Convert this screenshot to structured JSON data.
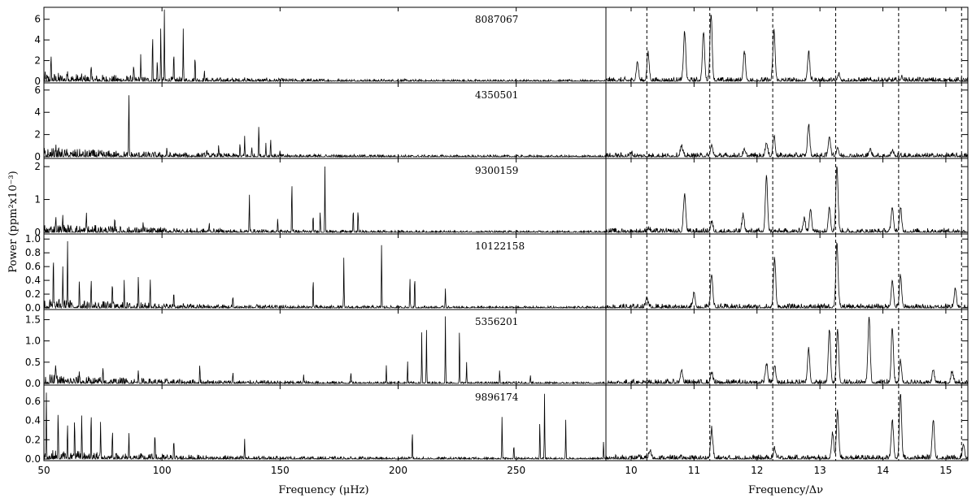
{
  "chart_data": {
    "type": "line",
    "ylabel": "Power (ppm²x10⁻³)",
    "left_axis": {
      "xlabel": "Frequency (μHz)",
      "xlim": [
        50,
        288
      ],
      "xticks": [
        50,
        100,
        150,
        200,
        250
      ]
    },
    "right_axis": {
      "xlabel": "Frequency/Δν",
      "xlim": [
        9.6,
        15.35
      ],
      "xticks": [
        10,
        11,
        12,
        13,
        14,
        15
      ],
      "dashed_lines": [
        10.25,
        11.25,
        12.25,
        13.25,
        14.25,
        15.25
      ]
    },
    "panels": [
      {
        "star": "8087067",
        "ylim": [
          0,
          7
        ],
        "yticks": [
          0,
          2,
          4,
          6
        ],
        "peaks": [
          [
            53,
            2.1
          ],
          [
            60,
            1.0
          ],
          [
            70,
            1.2
          ],
          [
            88,
            1.3
          ],
          [
            91,
            2.4
          ],
          [
            96,
            4.6
          ],
          [
            98,
            2.0
          ],
          [
            99.5,
            4.8
          ],
          [
            101,
            6.5
          ],
          [
            105,
            2.6
          ],
          [
            109,
            4.9
          ],
          [
            114,
            2.6
          ],
          [
            118,
            0.8
          ],
          [
            135,
            0.3
          ]
        ],
        "echelle_peaks": [
          [
            10.1,
            1.8
          ],
          [
            10.27,
            2.6
          ],
          [
            10.85,
            4.7
          ],
          [
            11.15,
            4.7
          ],
          [
            11.27,
            6.5
          ],
          [
            11.8,
            2.7
          ],
          [
            12.27,
            4.8
          ],
          [
            12.82,
            2.7
          ],
          [
            13.3,
            0.6
          ],
          [
            14.3,
            0.3
          ]
        ]
      },
      {
        "star": "4350501",
        "ylim": [
          0,
          6.5
        ],
        "yticks": [
          0,
          2,
          4,
          6
        ],
        "peaks": [
          [
            55,
            0.6
          ],
          [
            70,
            0.5
          ],
          [
            86,
            5.8
          ],
          [
            102,
            0.5
          ],
          [
            119,
            0.6
          ],
          [
            124,
            0.9
          ],
          [
            133,
            1.1
          ],
          [
            135,
            1.8
          ],
          [
            138,
            0.8
          ],
          [
            141,
            3.0
          ],
          [
            144,
            1.2
          ],
          [
            146,
            1.7
          ],
          [
            150,
            0.5
          ]
        ],
        "echelle_peaks": [
          [
            10.0,
            0.3
          ],
          [
            10.8,
            0.9
          ],
          [
            11.28,
            1.0
          ],
          [
            11.8,
            0.5
          ],
          [
            12.15,
            1.2
          ],
          [
            12.27,
            1.8
          ],
          [
            12.82,
            2.8
          ],
          [
            13.15,
            1.8
          ],
          [
            13.28,
            0.8
          ],
          [
            13.8,
            0.6
          ],
          [
            14.15,
            0.5
          ]
        ]
      },
      {
        "star": "9300159",
        "ylim": [
          0,
          2.2
        ],
        "yticks": [
          0,
          1,
          2
        ],
        "peaks": [
          [
            55,
            0.4
          ],
          [
            58,
            0.5
          ],
          [
            68,
            0.6
          ],
          [
            80,
            0.5
          ],
          [
            92,
            0.3
          ],
          [
            120,
            0.3
          ],
          [
            137,
            1.15
          ],
          [
            149,
            0.4
          ],
          [
            155,
            1.65
          ],
          [
            164,
            0.5
          ],
          [
            167,
            0.6
          ],
          [
            169,
            2.0
          ],
          [
            181,
            0.75
          ],
          [
            183,
            0.7
          ]
        ],
        "echelle_peaks": [
          [
            10.28,
            0.1
          ],
          [
            10.85,
            1.15
          ],
          [
            11.28,
            0.3
          ],
          [
            11.78,
            0.5
          ],
          [
            12.15,
            1.65
          ],
          [
            12.75,
            0.4
          ],
          [
            12.85,
            0.7
          ],
          [
            13.15,
            0.75
          ],
          [
            13.27,
            2.0
          ],
          [
            14.15,
            0.75
          ],
          [
            14.28,
            0.7
          ]
        ]
      },
      {
        "star": "10122158",
        "ylim": [
          0,
          1.05
        ],
        "yticks": [
          0,
          0.2,
          0.4,
          0.6,
          0.8,
          1.0
        ],
        "yticklabels": [
          "0.0",
          "0.2",
          "0.4",
          "0.6",
          "0.8",
          "1.0"
        ],
        "peaks": [
          [
            54,
            0.8
          ],
          [
            58,
            0.6
          ],
          [
            60,
            1.0
          ],
          [
            65,
            0.4
          ],
          [
            70,
            0.4
          ],
          [
            79,
            0.35
          ],
          [
            84,
            0.4
          ],
          [
            90,
            0.5
          ],
          [
            95,
            0.42
          ],
          [
            105,
            0.25
          ],
          [
            130,
            0.18
          ],
          [
            164,
            0.45
          ],
          [
            177,
            0.7
          ],
          [
            193,
            0.95
          ],
          [
            205,
            0.45
          ],
          [
            207,
            0.48
          ],
          [
            220,
            0.28
          ]
        ],
        "echelle_peaks": [
          [
            10.25,
            0.15
          ],
          [
            11.0,
            0.2
          ],
          [
            11.28,
            0.48
          ],
          [
            12.28,
            0.7
          ],
          [
            13.27,
            0.95
          ],
          [
            14.15,
            0.4
          ],
          [
            14.28,
            0.45
          ],
          [
            15.15,
            0.28
          ]
        ]
      },
      {
        "star": "5356201",
        "ylim": [
          0,
          1.7
        ],
        "yticks": [
          0,
          0.5,
          1.0,
          1.5
        ],
        "yticklabels": [
          "0.0",
          "0.5",
          "1.0",
          "1.5"
        ],
        "peaks": [
          [
            55,
            0.5
          ],
          [
            65,
            0.3
          ],
          [
            75,
            0.35
          ],
          [
            90,
            0.3
          ],
          [
            116,
            0.45
          ],
          [
            130,
            0.25
          ],
          [
            160,
            0.2
          ],
          [
            180,
            0.25
          ],
          [
            195,
            0.4
          ],
          [
            204,
            0.5
          ],
          [
            210,
            1.25
          ],
          [
            212,
            1.25
          ],
          [
            220,
            1.55
          ],
          [
            226,
            1.3
          ],
          [
            229,
            0.5
          ],
          [
            243,
            0.3
          ],
          [
            256,
            0.2
          ]
        ],
        "echelle_peaks": [
          [
            10.8,
            0.3
          ],
          [
            11.28,
            0.25
          ],
          [
            12.15,
            0.45
          ],
          [
            12.28,
            0.4
          ],
          [
            12.82,
            0.8
          ],
          [
            13.15,
            1.25
          ],
          [
            13.28,
            1.25
          ],
          [
            13.78,
            1.55
          ],
          [
            14.15,
            1.3
          ],
          [
            14.28,
            0.5
          ],
          [
            14.8,
            0.3
          ],
          [
            15.1,
            0.25
          ]
        ]
      },
      {
        "star": "9896174",
        "ylim": [
          0,
          0.75
        ],
        "yticks": [
          0,
          0.2,
          0.4,
          0.6
        ],
        "yticklabels": [
          "0.0",
          "0.2",
          "0.4",
          "0.6"
        ],
        "peaks": [
          [
            51,
            0.7
          ],
          [
            56,
            0.45
          ],
          [
            60,
            0.35
          ],
          [
            63,
            0.4
          ],
          [
            66,
            0.45
          ],
          [
            70,
            0.5
          ],
          [
            74,
            0.4
          ],
          [
            79,
            0.3
          ],
          [
            86,
            0.25
          ],
          [
            97,
            0.3
          ],
          [
            105,
            0.22
          ],
          [
            135,
            0.18
          ],
          [
            206,
            0.3
          ],
          [
            244,
            0.45
          ],
          [
            249,
            0.15
          ],
          [
            260,
            0.4
          ],
          [
            262,
            0.68
          ],
          [
            271,
            0.4
          ],
          [
            287,
            0.18
          ]
        ],
        "echelle_peaks": [
          [
            10.3,
            0.08
          ],
          [
            11.28,
            0.3
          ],
          [
            12.28,
            0.1
          ],
          [
            13.2,
            0.25
          ],
          [
            13.28,
            0.48
          ],
          [
            14.15,
            0.4
          ],
          [
            14.28,
            0.68
          ],
          [
            14.8,
            0.4
          ],
          [
            15.28,
            0.15
          ]
        ]
      }
    ]
  }
}
